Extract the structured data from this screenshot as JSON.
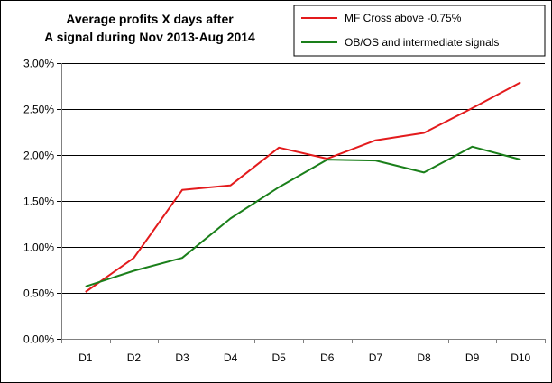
{
  "chart_data": {
    "type": "line",
    "title_lines": [
      "Average profits X days after",
      "A signal during Nov 2013-Aug 2014"
    ],
    "categories": [
      "D1",
      "D2",
      "D3",
      "D4",
      "D5",
      "D6",
      "D7",
      "D8",
      "D9",
      "D10"
    ],
    "y_unit": "percent",
    "ylim": [
      0,
      3
    ],
    "y_ticks": [
      0,
      0.5,
      1.0,
      1.5,
      2.0,
      2.5,
      3.0
    ],
    "y_tick_labels": [
      "0.00%",
      "0.50%",
      "1.00%",
      "1.50%",
      "2.00%",
      "2.50%",
      "3.00%"
    ],
    "grid": true,
    "legend_position": "top-right",
    "series": [
      {
        "name": "MF Cross above -0.75%",
        "color": "#e31a1c",
        "values": [
          0.51,
          0.88,
          1.62,
          1.67,
          2.08,
          1.96,
          2.16,
          2.24,
          2.51,
          2.79
        ]
      },
      {
        "name": "OB/OS and intermediate signals",
        "color": "#1a7f1a",
        "values": [
          0.57,
          0.74,
          0.88,
          1.31,
          1.65,
          1.95,
          1.94,
          1.81,
          2.09,
          1.95
        ]
      }
    ]
  }
}
